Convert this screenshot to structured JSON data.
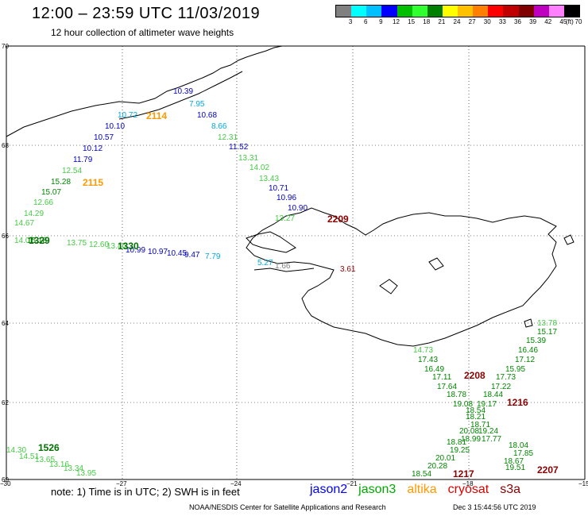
{
  "title": "12:00 – 23:59 UTC 11/03/2019",
  "subtitle": "12 hour collection of altimeter wave heights",
  "legend": {
    "colors": [
      "#808080",
      "#00ffff",
      "#00c0ff",
      "#0000ff",
      "#00c000",
      "#30ff30",
      "#008000",
      "#ffff00",
      "#ffc000",
      "#ff8000",
      "#ff0000",
      "#c00000",
      "#800000",
      "#c000c0",
      "#ff80ff",
      "#000000"
    ],
    "labels": [
      "3",
      "6",
      "9",
      "12",
      "15",
      "18",
      "21",
      "24",
      "27",
      "30",
      "33",
      "36",
      "39",
      "42",
      "45",
      "70"
    ],
    "unit": "(ft)"
  },
  "axes": {
    "lat_labels": [
      "70",
      "68",
      "66",
      "64",
      "62",
      "60"
    ],
    "lon_labels": [
      "−30",
      "−27",
      "−24",
      "−21",
      "−18",
      "−15"
    ]
  },
  "pass_labels": [
    {
      "text": "2114",
      "color": "#ff9900"
    },
    {
      "text": "2115",
      "color": "#ff9900"
    },
    {
      "text": "2209",
      "color": "#8b0000"
    },
    {
      "text": "1329",
      "color": "#007000"
    },
    {
      "text": "1330",
      "color": "#007000"
    },
    {
      "text": "2208",
      "color": "#8b0000"
    },
    {
      "text": "1216",
      "color": "#8b0000"
    },
    {
      "text": "1526",
      "color": "#007000"
    },
    {
      "text": "1217",
      "color": "#8b0000"
    },
    {
      "text": "2207",
      "color": "#8b0000"
    }
  ],
  "observations": [
    {
      "text": "10.39",
      "color": "#0000cc"
    },
    {
      "text": "7.95",
      "color": "#00aadd"
    },
    {
      "text": "10.68",
      "color": "#0000cc"
    },
    {
      "text": "10.72",
      "color": "#00aadd"
    },
    {
      "text": "10.10",
      "color": "#0000cc"
    },
    {
      "text": "8.66",
      "color": "#00aadd"
    },
    {
      "text": "10.57",
      "color": "#0000cc"
    },
    {
      "text": "12.31",
      "color": "#44cc44"
    },
    {
      "text": "10.12",
      "color": "#0000cc"
    },
    {
      "text": "11.52",
      "color": "#0000cc"
    },
    {
      "text": "11.79",
      "color": "#0000cc"
    },
    {
      "text": "13.31",
      "color": "#44cc44"
    },
    {
      "text": "12.54",
      "color": "#44cc44"
    },
    {
      "text": "14.02",
      "color": "#44cc44"
    },
    {
      "text": "15.28",
      "color": "#008800"
    },
    {
      "text": "13.43",
      "color": "#44cc44"
    },
    {
      "text": "15.07",
      "color": "#008800"
    },
    {
      "text": "10.71",
      "color": "#0000cc"
    },
    {
      "text": "12.66",
      "color": "#44cc44"
    },
    {
      "text": "10.96",
      "color": "#0000cc"
    },
    {
      "text": "14.29",
      "color": "#44cc44"
    },
    {
      "text": "10.90",
      "color": "#0000cc"
    },
    {
      "text": "14.67",
      "color": "#44cc44"
    },
    {
      "text": "13.27",
      "color": "#44cc44"
    },
    {
      "text": "14.07",
      "color": "#44cc44"
    },
    {
      "text": "15.18",
      "color": "#008800"
    },
    {
      "text": "13.75",
      "color": "#44cc44"
    },
    {
      "text": "12.60",
      "color": "#44cc44"
    },
    {
      "text": "13.40",
      "color": "#44cc44"
    },
    {
      "text": "10.99",
      "color": "#0000cc"
    },
    {
      "text": "10.97",
      "color": "#0000cc"
    },
    {
      "text": "10.45",
      "color": "#0000cc"
    },
    {
      "text": "9.47",
      "color": "#0000cc"
    },
    {
      "text": "7.79",
      "color": "#00aadd"
    },
    {
      "text": "5.27",
      "color": "#00aadd"
    },
    {
      "text": "1.66",
      "color": "#808080"
    },
    {
      "text": "3.61",
      "color": "#8b0000"
    },
    {
      "text": "13.78",
      "color": "#44cc44"
    },
    {
      "text": "15.17",
      "color": "#008800"
    },
    {
      "text": "15.39",
      "color": "#008800"
    },
    {
      "text": "14.73",
      "color": "#44cc44"
    },
    {
      "text": "16.46",
      "color": "#008800"
    },
    {
      "text": "17.43",
      "color": "#008800"
    },
    {
      "text": "17.12",
      "color": "#008800"
    },
    {
      "text": "16.49",
      "color": "#008800"
    },
    {
      "text": "15.95",
      "color": "#008800"
    },
    {
      "text": "17.11",
      "color": "#008800"
    },
    {
      "text": "17.73",
      "color": "#008800"
    },
    {
      "text": "17.64",
      "color": "#008800"
    },
    {
      "text": "17.22",
      "color": "#008800"
    },
    {
      "text": "18.78",
      "color": "#008800"
    },
    {
      "text": "18.44",
      "color": "#008800"
    },
    {
      "text": "19.08",
      "color": "#008800"
    },
    {
      "text": "19.17",
      "color": "#008800"
    },
    {
      "text": "18.54",
      "color": "#008800"
    },
    {
      "text": "18.21",
      "color": "#008800"
    },
    {
      "text": "18.71",
      "color": "#008800"
    },
    {
      "text": "20.08",
      "color": "#008800"
    },
    {
      "text": "19.24",
      "color": "#008800"
    },
    {
      "text": "18.99",
      "color": "#008800"
    },
    {
      "text": "17.77",
      "color": "#008800"
    },
    {
      "text": "18.81",
      "color": "#008800"
    },
    {
      "text": "18.04",
      "color": "#008800"
    },
    {
      "text": "19.25",
      "color": "#008800"
    },
    {
      "text": "17.85",
      "color": "#008800"
    },
    {
      "text": "20.01",
      "color": "#008800"
    },
    {
      "text": "18.67",
      "color": "#008800"
    },
    {
      "text": "20.28",
      "color": "#008800"
    },
    {
      "text": "19.51",
      "color": "#008800"
    },
    {
      "text": "18.54",
      "color": "#008800"
    },
    {
      "text": "14.30",
      "color": "#44cc44"
    },
    {
      "text": "14.51",
      "color": "#44cc44"
    },
    {
      "text": "13.65",
      "color": "#44cc44"
    },
    {
      "text": "13.16",
      "color": "#44cc44"
    },
    {
      "text": "13.34",
      "color": "#44cc44"
    },
    {
      "text": "13.95",
      "color": "#44cc44"
    }
  ],
  "footer": {
    "note": "note:  1) Time is in UTC;  2) SWH is in feet",
    "satellites": [
      {
        "name": "jason2",
        "color": "#0000ff"
      },
      {
        "name": "jason3",
        "color": "#00aa00"
      },
      {
        "name": "altika",
        "color": "#ff9900"
      },
      {
        "name": "cryosat",
        "color": "#dd0000"
      },
      {
        "name": "s3a",
        "color": "#8b0000"
      }
    ],
    "credit": "NOAA/NESDIS Center for Satellite Applications and Research",
    "timestamp": "Dec  3 15:44:56 UTC 2019"
  }
}
